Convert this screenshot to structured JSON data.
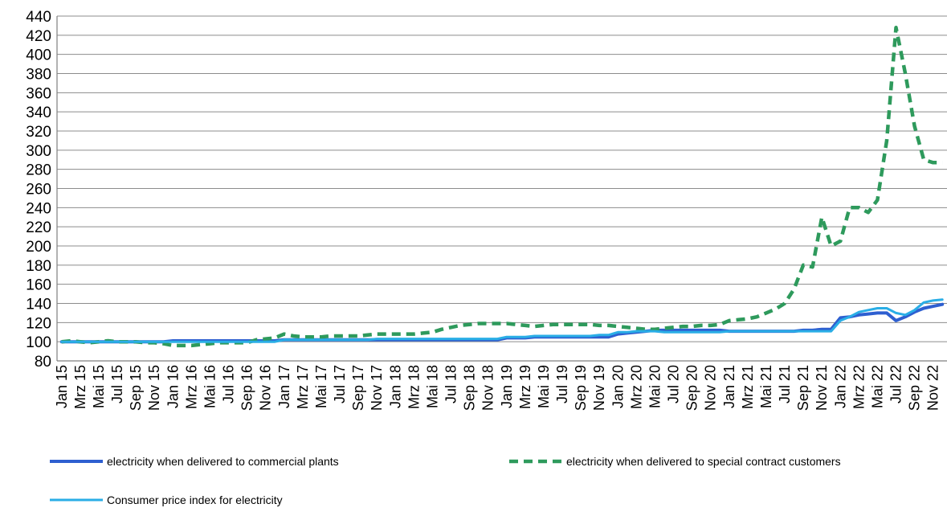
{
  "chart_data": {
    "type": "line",
    "title": "",
    "xlabel": "",
    "ylabel": "",
    "ylim": [
      80,
      440
    ],
    "yticks": [
      80,
      100,
      120,
      140,
      160,
      180,
      200,
      220,
      240,
      260,
      280,
      300,
      320,
      340,
      360,
      380,
      400,
      420,
      440
    ],
    "x": [
      "Jan 15",
      "Feb 15",
      "Mrz 15",
      "Apr 15",
      "Mai 15",
      "Jun 15",
      "Jul 15",
      "Aug 15",
      "Sep 15",
      "Okt 15",
      "Nov 15",
      "Dez 15",
      "Jan 16",
      "Feb 16",
      "Mrz 16",
      "Apr 16",
      "Mai 16",
      "Jun 16",
      "Jul 16",
      "Aug 16",
      "Sep 16",
      "Okt 16",
      "Nov 16",
      "Dez 16",
      "Jan 17",
      "Feb 17",
      "Mrz 17",
      "Apr 17",
      "Mai 17",
      "Jun 17",
      "Jul 17",
      "Aug 17",
      "Sep 17",
      "Okt 17",
      "Nov 17",
      "Dez 17",
      "Jan 18",
      "Feb 18",
      "Mrz 18",
      "Apr 18",
      "Mai 18",
      "Jun 18",
      "Jul 18",
      "Aug 18",
      "Sep 18",
      "Okt 18",
      "Nov 18",
      "Dez 18",
      "Jan 19",
      "Feb 19",
      "Mrz 19",
      "Apr 19",
      "Mai 19",
      "Jun 19",
      "Jul 19",
      "Aug 19",
      "Sep 19",
      "Okt 19",
      "Nov 19",
      "Dez 19",
      "Jan 20",
      "Feb 20",
      "Mrz 20",
      "Apr 20",
      "Mai 20",
      "Jun 20",
      "Jul 20",
      "Aug 20",
      "Sep 20",
      "Okt 20",
      "Nov 20",
      "Dez 20",
      "Jan 21",
      "Feb 21",
      "Mrz 21",
      "Apr 21",
      "Mai 21",
      "Jun 21",
      "Jul 21",
      "Aug 21",
      "Sep 21",
      "Okt 21",
      "Nov 21",
      "Dez 21",
      "Jan 22",
      "Feb 22",
      "Mrz 22",
      "Apr 22",
      "Mai 22",
      "Jun 22",
      "Jul 22",
      "Aug 22",
      "Sep 22",
      "Okt 22",
      "Nov 22",
      "Dez 22"
    ],
    "xtick_labels": [
      "Jan 15",
      "Mrz 15",
      "Mai 15",
      "Jul 15",
      "Sep 15",
      "Nov 15",
      "Jan 16",
      "Mrz 16",
      "Mai 16",
      "Jul 16",
      "Sep 16",
      "Nov 16",
      "Jan 17",
      "Mrz 17",
      "Mai 17",
      "Jul 17",
      "Sep 17",
      "Nov 17",
      "Jan 18",
      "Mrz 18",
      "Mai 18",
      "Jul 18",
      "Sep 18",
      "Nov 18",
      "Jan 19",
      "Mrz 19",
      "Mai 19",
      "Jul 19",
      "Sep 19",
      "Nov 19",
      "Jan 20",
      "Mrz 20",
      "Mai 20",
      "Jul 20",
      "Sep 20",
      "Nov 20",
      "Jan 21",
      "Mrz 21",
      "Mai 21",
      "Jul 21",
      "Sep 21",
      "Nov 21",
      "Jan 22",
      "Mrz 22",
      "Mai 22",
      "Jul 22",
      "Sep 22",
      "Nov 22"
    ],
    "grid": "horizontal",
    "legend_position": "bottom",
    "series": [
      {
        "name": "electricity when delivered to commercial plants",
        "color": "#2e5fd0",
        "style": "solid",
        "values": [
          100,
          100,
          100,
          100,
          100,
          100,
          100,
          100,
          100,
          100,
          100,
          100,
          101,
          101,
          101,
          101,
          101,
          101,
          101,
          101,
          101,
          101,
          101,
          101,
          102,
          102,
          102,
          102,
          102,
          102,
          102,
          102,
          102,
          102,
          102,
          102,
          102,
          102,
          102,
          102,
          102,
          102,
          102,
          102,
          102,
          102,
          102,
          102,
          104,
          104,
          104,
          105,
          105,
          105,
          105,
          105,
          105,
          105,
          105,
          105,
          108,
          109,
          110,
          111,
          112,
          112,
          112,
          112,
          112,
          112,
          112,
          112,
          111,
          111,
          111,
          111,
          111,
          111,
          111,
          111,
          112,
          112,
          113,
          113,
          125,
          126,
          128,
          129,
          130,
          130,
          122,
          126,
          131,
          135,
          137,
          139
        ]
      },
      {
        "name": "electricity when delivered to special contract customers",
        "color": "#2e9a5c",
        "style": "dashed",
        "values": [
          100,
          101,
          100,
          99,
          100,
          101,
          100,
          100,
          100,
          99,
          99,
          98,
          96,
          96,
          96,
          97,
          98,
          99,
          99,
          99,
          99,
          102,
          103,
          104,
          108,
          106,
          105,
          105,
          105,
          106,
          106,
          106,
          106,
          107,
          108,
          108,
          108,
          108,
          108,
          109,
          110,
          113,
          115,
          117,
          118,
          119,
          119,
          119,
          119,
          118,
          117,
          116,
          117,
          118,
          118,
          118,
          118,
          118,
          117,
          117,
          116,
          115,
          114,
          113,
          113,
          114,
          115,
          116,
          116,
          117,
          117,
          118,
          122,
          123,
          124,
          126,
          130,
          134,
          140,
          155,
          180,
          178,
          230,
          200,
          205,
          240,
          240,
          235,
          248,
          310,
          428,
          380,
          325,
          290,
          287,
          287
        ]
      },
      {
        "name": "Consumer price index for electricity",
        "color": "#2aaee6",
        "style": "solid",
        "values": [
          100,
          100,
          100,
          100,
          100,
          100,
          100,
          100,
          100,
          100,
          100,
          100,
          100,
          100,
          100,
          100,
          100,
          100,
          100,
          100,
          100,
          100,
          100,
          100,
          102,
          102,
          102,
          102,
          102,
          102,
          102,
          102,
          102,
          102,
          103,
          103,
          103,
          103,
          103,
          103,
          103,
          103,
          103,
          103,
          103,
          103,
          103,
          103,
          105,
          105,
          105,
          106,
          106,
          106,
          106,
          106,
          106,
          106,
          107,
          107,
          110,
          110,
          111,
          111,
          111,
          110,
          110,
          110,
          110,
          110,
          110,
          110,
          111,
          111,
          111,
          111,
          111,
          111,
          111,
          111,
          111,
          111,
          111,
          111,
          122,
          126,
          131,
          133,
          135,
          135,
          130,
          128,
          133,
          141,
          143,
          144
        ]
      }
    ]
  }
}
